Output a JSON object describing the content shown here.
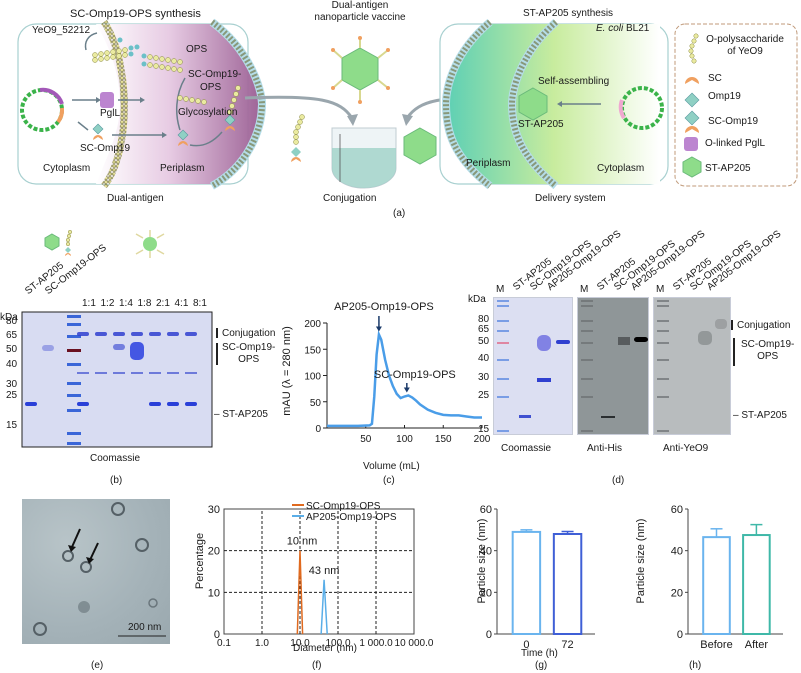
{
  "panel_a": {
    "left_title": "SC-Omp19-OPS synthesis",
    "strain_left": "YeO9_52212",
    "ops_label": "OPS",
    "sc_omp19_ops_label_1": "SC-Omp19-",
    "sc_omp19_ops_label_2": "OPS",
    "pgll_label": "PglL",
    "glycosylation_label": "Glycosylation",
    "sc_omp19_label": "SC-Omp19",
    "cytoplasm_left": "Cytoplasm",
    "periplasm_left": "Periplasm",
    "left_caption": "Dual-antigen",
    "center_title_1": "Dual-antigen",
    "center_title_2": "nanoparticle vaccine",
    "center_caption": "Conjugation",
    "right_title": "ST-AP205 synthesis",
    "strain_right_italic": "E. coli",
    "strain_right": " BL21",
    "self_assembling": "Self-assembling",
    "st_ap205_label": "ST-AP205",
    "periplasm_right": "Periplasm",
    "cytoplasm_right": "Cytoplasm",
    "right_caption": "Delivery system",
    "panel_label": "(a)",
    "legend": [
      {
        "icon": "polysaccharide-chain-icon",
        "label_1": "O-polysaccharide",
        "label_2": "of YeO9"
      },
      {
        "icon": "sc-crescent-icon",
        "label_1": "SC"
      },
      {
        "icon": "omp19-diamond-icon",
        "label_1": "Omp19"
      },
      {
        "icon": "sc-omp19-icon",
        "label_1": "SC-Omp19"
      },
      {
        "icon": "pgll-enzyme-icon",
        "label_1": "O-linked PglL"
      },
      {
        "icon": "icosahedron-icon",
        "label_1": "ST-AP205"
      }
    ]
  },
  "panel_b": {
    "lanes_rotated": [
      "ST-AP205",
      "SC-Omp19-OPS"
    ],
    "ratios": [
      "1:1",
      "1:2",
      "1:4",
      "1:8",
      "2:1",
      "4:1",
      "8:1"
    ],
    "kda_unit": "kDa",
    "markers": [
      "80",
      "65",
      "50",
      "40",
      "30",
      "25",
      "15"
    ],
    "annotations": {
      "conjugation": "Conjugation",
      "sc_omp19_ops_1": "SC-Omp19-",
      "sc_omp19_ops_2": "OPS",
      "st_ap205": "ST-AP205"
    },
    "caption": "Coomassie",
    "panel_label": "(b)"
  },
  "panel_c": {
    "chart_data": {
      "type": "line",
      "title": "",
      "xlabel": "Volume (mL)",
      "ylabel": "mAU (λ = 280 nm)",
      "xlim": [
        0,
        200
      ],
      "ylim": [
        0,
        200
      ],
      "xticks": [
        "50",
        "100",
        "150",
        "200"
      ],
      "yticks": [
        "0",
        "50",
        "100",
        "150",
        "200"
      ],
      "color": "#4a9de8",
      "x": [
        0,
        20,
        40,
        55,
        58,
        61,
        64,
        67,
        70,
        75,
        80,
        85,
        90,
        95,
        100,
        105,
        110,
        115,
        120,
        130,
        140,
        150,
        160,
        170,
        180,
        190,
        200
      ],
      "y": [
        4,
        4,
        4,
        5,
        8,
        60,
        140,
        178,
        168,
        130,
        100,
        80,
        65,
        57,
        60,
        62,
        58,
        52,
        45,
        35,
        29,
        25,
        24,
        24,
        22,
        20,
        20
      ],
      "annotations": [
        {
          "text": "AP205-Omp19-OPS",
          "x": 67
        },
        {
          "text": "SC-Omp19-OPS",
          "x": 103
        }
      ]
    },
    "panel_label": "(c)"
  },
  "panel_d": {
    "kda_unit": "kDa",
    "markers": [
      "80",
      "65",
      "50",
      "40",
      "30",
      "25",
      "15"
    ],
    "blots": [
      {
        "caption": "Coomassie",
        "lanes": [
          "M",
          "ST-AP205",
          "SC-Omp19-OPS",
          "AP205-Omp19-OPS"
        ]
      },
      {
        "caption": "Anti-His",
        "lanes": [
          "M",
          "ST-AP205",
          "SC-Omp19-OPS",
          "AP205-Omp19-OPS"
        ]
      },
      {
        "caption": "Anti-YeO9",
        "lanes": [
          "M",
          "ST-AP205",
          "SC-Omp19-OPS",
          "AP205-Omp19-OPS"
        ]
      }
    ],
    "annotations": {
      "conjugation": "Conjugation",
      "sc_omp19_ops_1": "SC-Omp19-",
      "sc_omp19_ops_2": "OPS",
      "st_ap205": "ST-AP205"
    },
    "panel_label": "(d)"
  },
  "panel_e": {
    "scale_bar": "200 nm",
    "panel_label": "(e)"
  },
  "panel_f": {
    "chart_data": {
      "type": "line",
      "xlabel": "Diameter (nm)",
      "ylabel": "Percentage",
      "xscale": "log",
      "xlim": [
        0.1,
        10000
      ],
      "ylim": [
        0,
        30
      ],
      "xticks": [
        "0.1",
        "1.0",
        "10.0",
        "100.0",
        "1 000.0",
        "10 000.0"
      ],
      "yticks": [
        "0",
        "10",
        "20",
        "30"
      ],
      "grid": "dashed",
      "legend_position": "top-right",
      "series": [
        {
          "name": "SC-Omp19-OPS",
          "color": "#e06a1f",
          "x": [
            8.5,
            10,
            11.7
          ],
          "y": [
            0,
            20,
            0
          ],
          "peak_label": "10 nm"
        },
        {
          "name": "AP205-Omp19-OPS",
          "color": "#5aaee8",
          "x": [
            36,
            43,
            52
          ],
          "y": [
            0,
            13,
            0
          ],
          "peak_label": "43 nm"
        }
      ]
    },
    "panel_label": "(f)"
  },
  "panel_g": {
    "chart_data": {
      "type": "bar",
      "xlabel": "Time (h)",
      "ylabel": "Particle size (nm)",
      "categories": [
        "0",
        "72"
      ],
      "values": [
        49,
        48
      ],
      "errors": [
        1,
        1.2
      ],
      "colors": [
        "#6ab4ee",
        "#3f5fd6"
      ],
      "ylim": [
        0,
        60
      ],
      "yticks": [
        "0",
        "20",
        "40",
        "60"
      ]
    },
    "panel_label": "(g)"
  },
  "panel_h": {
    "chart_data": {
      "type": "bar",
      "xlabel": "",
      "ylabel": "Particle size (nm)",
      "categories": [
        "Before",
        "After"
      ],
      "values": [
        46.5,
        47.5
      ],
      "errors": [
        4,
        5
      ],
      "colors": [
        "#6ab4ee",
        "#3fb8a8"
      ],
      "ylim": [
        0,
        60
      ],
      "yticks": [
        "0",
        "20",
        "40",
        "60"
      ]
    },
    "panel_label": "(h)"
  }
}
